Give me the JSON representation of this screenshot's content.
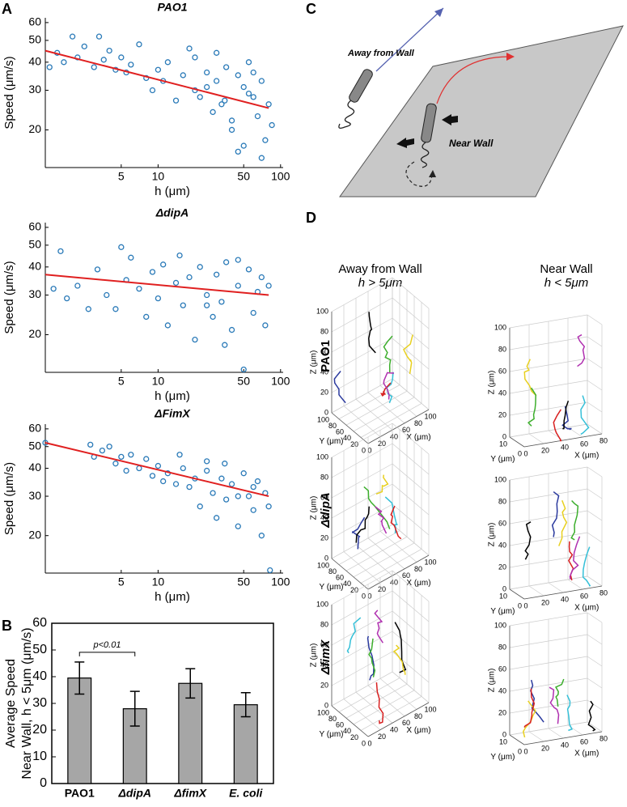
{
  "panel_labels": [
    "A",
    "B",
    "C",
    "D"
  ],
  "chart_data": [
    {
      "type": "scatter",
      "title": "PAO1",
      "xlabel": "h (μm)",
      "ylabel": "Speed (μm/s)",
      "xlog": true,
      "ylog": true,
      "xlim": [
        1.2,
        105
      ],
      "ylim": [
        13.6,
        63
      ],
      "xticks": [
        5,
        10,
        50,
        100
      ],
      "yticks": [
        20,
        30,
        40,
        50,
        60
      ],
      "points": {
        "color": "#2a7ab8",
        "x": [
          1.3,
          1.5,
          1.7,
          2,
          2.2,
          2.5,
          3,
          3.3,
          3.6,
          4,
          4.5,
          5,
          5.5,
          6,
          7,
          8,
          9,
          10,
          11,
          12,
          14,
          16,
          18,
          20,
          22,
          25,
          28,
          30,
          33,
          36,
          40,
          45,
          50,
          55,
          60,
          65,
          70,
          75,
          80,
          85,
          20,
          30,
          40,
          50,
          60,
          70,
          25,
          35,
          45,
          55
        ],
        "values": [
          38,
          44,
          40,
          52,
          42,
          47,
          38,
          52,
          41,
          45,
          37,
          42,
          36,
          39,
          48,
          34,
          30,
          37,
          33,
          40,
          27,
          35,
          46,
          30,
          28,
          36,
          24,
          33,
          26,
          38,
          22,
          35,
          17,
          40,
          28,
          23,
          33,
          18,
          26,
          21,
          42,
          44,
          20,
          31,
          36,
          15,
          31,
          27,
          16,
          29
        ]
      },
      "fit": {
        "color": "#e02020",
        "x": [
          1.2,
          80
        ],
        "values": [
          45,
          25
        ]
      }
    },
    {
      "type": "scatter",
      "title": "ΔdipA",
      "xlabel": "h (μm)",
      "ylabel": "Speed (μm/s)",
      "xlog": true,
      "ylog": true,
      "xlim": [
        1.2,
        105
      ],
      "ylim": [
        13.6,
        63
      ],
      "xticks": [
        5,
        10,
        50,
        100
      ],
      "yticks": [
        20,
        30,
        40,
        50,
        60
      ],
      "points": {
        "color": "#2a7ab8",
        "x": [
          1.4,
          1.6,
          1.8,
          2.2,
          2.7,
          3.2,
          3.8,
          4.5,
          5,
          5.5,
          6,
          7,
          8,
          9,
          10,
          11,
          12,
          14,
          16,
          18,
          20,
          22,
          25,
          28,
          30,
          33,
          36,
          40,
          45,
          50,
          55,
          60,
          65,
          70,
          75,
          80,
          15,
          25,
          35,
          45
        ],
        "values": [
          32,
          47,
          29,
          33,
          26,
          39,
          30,
          26,
          49,
          35,
          44,
          32,
          24,
          38,
          29,
          41,
          22,
          34,
          27,
          36,
          19,
          40,
          30,
          24,
          37,
          28,
          42,
          21,
          33,
          14,
          39,
          25,
          31,
          36,
          22,
          33,
          45,
          27,
          18,
          43
        ]
      },
      "fit": {
        "color": "#e02020",
        "x": [
          1.2,
          80
        ],
        "values": [
          37,
          30
        ]
      }
    },
    {
      "type": "scatter",
      "title": "ΔFimX",
      "xlabel": "h (μm)",
      "ylabel": "Speed (μm/s)",
      "xlog": true,
      "ylog": true,
      "xlim": [
        1.2,
        105
      ],
      "ylim": [
        13.6,
        63
      ],
      "xticks": [
        5,
        10,
        50,
        100
      ],
      "yticks": [
        20,
        30,
        40,
        50,
        60
      ],
      "points": {
        "color": "#2a7ab8",
        "x": [
          1.2,
          2.8,
          3,
          3.5,
          4,
          4.5,
          5,
          5.5,
          6,
          7,
          8,
          9,
          10,
          11,
          12,
          14,
          16,
          18,
          20,
          22,
          25,
          28,
          30,
          33,
          36,
          40,
          45,
          50,
          55,
          60,
          65,
          70,
          75,
          80,
          82,
          15,
          25,
          35,
          45,
          60
        ],
        "values": [
          52,
          51,
          45,
          48,
          50,
          42,
          45,
          39,
          46,
          40,
          44,
          37,
          41,
          35,
          38,
          34,
          40,
          33,
          36,
          27,
          39,
          31,
          24,
          36,
          29,
          34,
          22,
          38,
          30,
          26,
          35,
          20,
          31,
          27,
          14,
          46,
          43,
          42,
          30,
          33
        ]
      },
      "fit": {
        "color": "#e02020",
        "x": [
          1.2,
          80
        ],
        "values": [
          52,
          30
        ]
      }
    },
    {
      "type": "bar",
      "ylabel": [
        "Average Speed",
        "Near Wall, h < 5μm (μm/s)"
      ],
      "categories": [
        "PAO1",
        "ΔdipA",
        "ΔfimX",
        "E. coli"
      ],
      "values": [
        39.5,
        28,
        37.5,
        29.5
      ],
      "errors": [
        6,
        6.5,
        5.5,
        4.5
      ],
      "color": "#a6a6a6",
      "ylim": [
        0,
        60
      ],
      "yticks": [
        0,
        10,
        20,
        30,
        40,
        50,
        60
      ],
      "annotation": "p<0.01"
    }
  ],
  "panel_c": {
    "away": "Away from Wall",
    "near": "Near Wall"
  },
  "panel_d": {
    "col_away": [
      "Away from Wall",
      "h > 5μm"
    ],
    "col_near": [
      "Near Wall",
      "h < 5μm"
    ],
    "rows": [
      "PAO1",
      "ΔdipA",
      "ΔfimX"
    ],
    "xlabel": "X (μm)",
    "ylabel": "Y (μm)",
    "zlabel": "Z (μm)",
    "away": {
      "xticks": [
        0,
        20,
        40,
        60,
        80,
        100
      ],
      "yticks": [
        0,
        20,
        40,
        60,
        80,
        100
      ],
      "zticks": [
        0,
        20,
        40,
        60,
        80,
        100
      ]
    },
    "near": {
      "xticks": [
        0,
        20,
        40,
        60,
        80
      ],
      "yticks": [
        0,
        10
      ],
      "zticks": [
        0,
        20,
        40,
        60,
        80,
        100
      ]
    }
  }
}
